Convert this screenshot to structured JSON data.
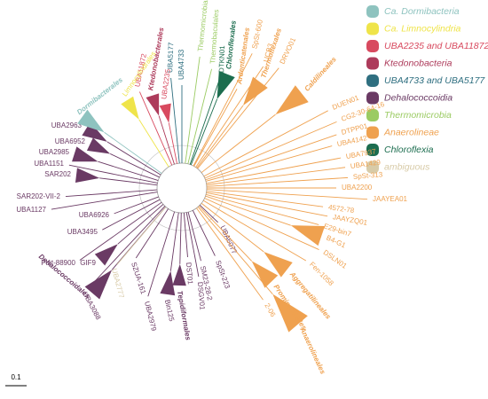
{
  "legend": [
    {
      "label": "Ca. Dormibacteria",
      "color": "#8ec3bf"
    },
    {
      "label": "Ca. Limnocylindria",
      "color": "#efe44a"
    },
    {
      "label": "UBA2235 and UBA11872",
      "color": "#d84a5f"
    },
    {
      "label": "Ktedonobacteria",
      "color": "#ad3b5b"
    },
    {
      "label": "UBA4733 and UBA5177",
      "color": "#2f6f80"
    },
    {
      "label": "Dehalococcoidia",
      "color": "#6a3a64"
    },
    {
      "label": "Thermomicrobia",
      "color": "#9bcb63"
    },
    {
      "label": "Anaerolineae",
      "color": "#efa14f"
    },
    {
      "label": "Chloroflexia",
      "color": "#1c6d4f"
    },
    {
      "label": "ambiguous",
      "color": "#d8cba8"
    }
  ],
  "leaves": [
    {
      "label": "UBA2963"
    },
    {
      "label": "UBA6952"
    },
    {
      "label": "UBA2985"
    },
    {
      "label": "UBA1151"
    },
    {
      "label": "SAR202"
    },
    {
      "label": "SAR202-VII-2"
    },
    {
      "label": "UBA1127"
    },
    {
      "label": "UBA3495"
    },
    {
      "label": "UBA6926"
    },
    {
      "label": "Plut-88900"
    },
    {
      "label": "GIF9"
    },
    {
      "label": "Dehalococcoidales"
    },
    {
      "label": "UBA2777"
    },
    {
      "label": "UBA3088"
    },
    {
      "label": "SZUA-161"
    },
    {
      "label": "UBA2979"
    },
    {
      "label": "Bin125"
    },
    {
      "label": "Tepidiformales"
    },
    {
      "label": "DSGV01"
    },
    {
      "label": "DST01"
    },
    {
      "label": "SM23-28-2"
    },
    {
      "label": "SpSt-223"
    },
    {
      "label": "UBA6077"
    },
    {
      "label": "Anaerolineales"
    },
    {
      "label": "2-06"
    },
    {
      "label": "Promineofilales"
    },
    {
      "label": "Aggregatilineales"
    },
    {
      "label": "Fen-1058"
    },
    {
      "label": "DSLN01"
    },
    {
      "label": "B4-G1"
    },
    {
      "label": "E29-bin7"
    },
    {
      "label": "JAAYZQ01"
    },
    {
      "label": "4572-78"
    },
    {
      "label": "JAAYEA01"
    },
    {
      "label": "UBA2200"
    },
    {
      "label": "SpSt-313"
    },
    {
      "label": "UBA1429"
    },
    {
      "label": "UBA7937"
    },
    {
      "label": "UBA4142"
    },
    {
      "label": "DTPP01"
    },
    {
      "label": "CG2-30-64-16"
    },
    {
      "label": "DUEN01"
    },
    {
      "label": "Caldilineales"
    },
    {
      "label": "DRVO01"
    },
    {
      "label": "UCB3"
    },
    {
      "label": "Thermoflexales"
    },
    {
      "label": "SpSt-600"
    },
    {
      "label": "Ardenticatenales"
    },
    {
      "label": "DTKN01"
    },
    {
      "label": "Chloroflexales"
    },
    {
      "label": "Thermobaculales"
    },
    {
      "label": "Thermomicrobiales"
    },
    {
      "label": "UBA4733"
    },
    {
      "label": "UBA5177"
    },
    {
      "label": "Ktedonobacterales"
    },
    {
      "label": "UBA11872"
    },
    {
      "label": "UBA2235"
    },
    {
      "label": "Limnocylindrales"
    },
    {
      "label": "Dormibacterales"
    }
  ],
  "scale_bar": "0.1"
}
